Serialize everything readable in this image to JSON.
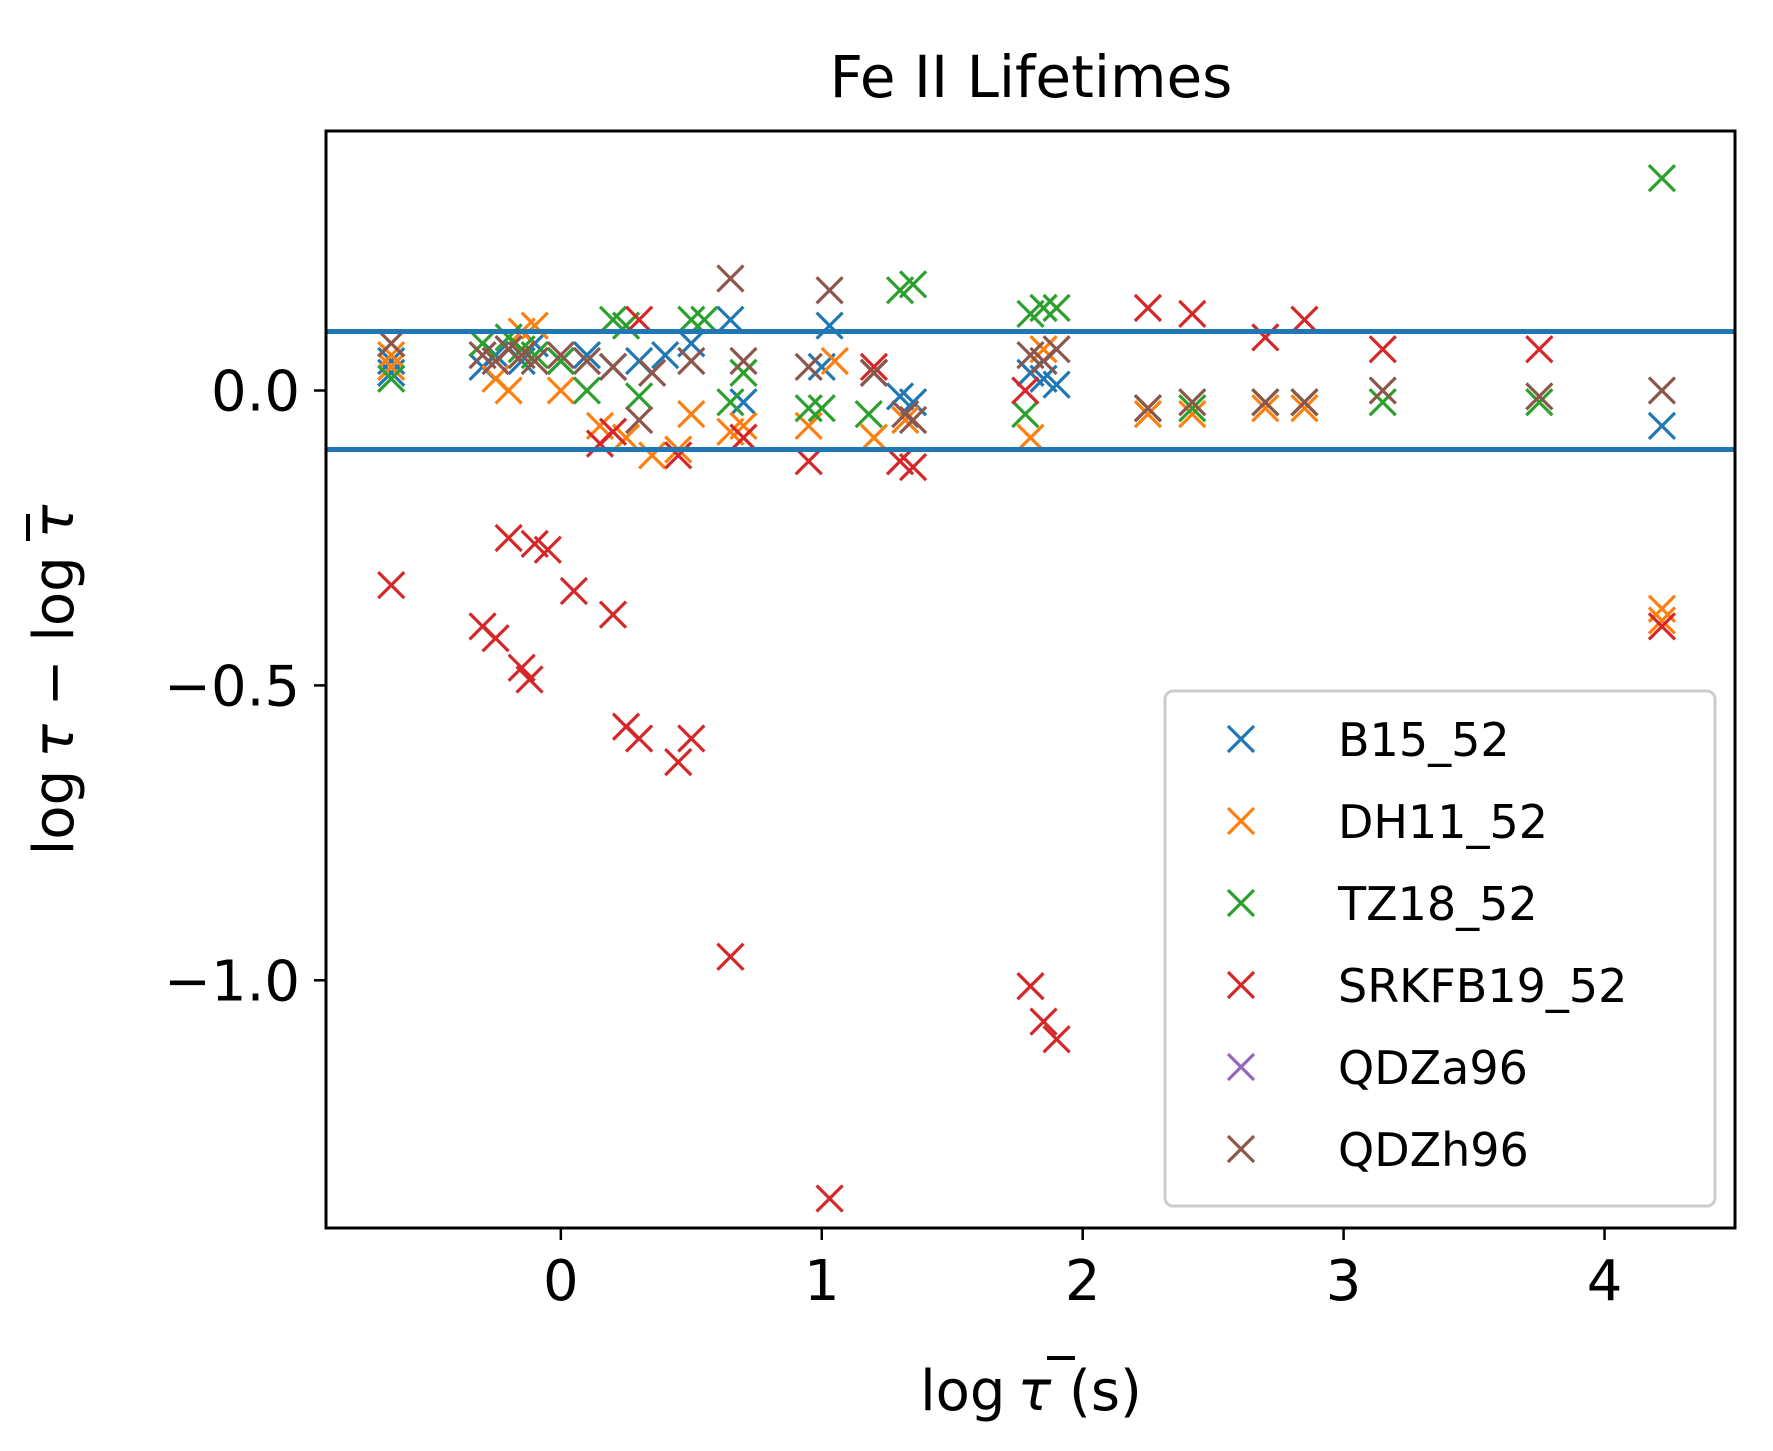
{
  "chart_data": {
    "type": "scatter",
    "title": "Fe II Lifetimes",
    "xlabel_prefix": "log",
    "xlabel_symbol": "τ",
    "xlabel_suffix": " (s)",
    "ylabel_left": "log",
    "ylabel_tau": "τ",
    "ylabel_minus": " − log ",
    "ylabel_taubar": "τ",
    "xlim": [
      -0.9,
      4.5
    ],
    "ylim": [
      -1.42,
      0.44
    ],
    "xticks": [
      0,
      1,
      2,
      3,
      4
    ],
    "xtick_labels": [
      "0",
      "1",
      "2",
      "3",
      "4"
    ],
    "yticks": [
      0.0,
      -0.5,
      -1.0
    ],
    "ytick_labels": [
      "0.0",
      "−0.5",
      "−1.0"
    ],
    "hlines": [
      0.1,
      -0.1
    ],
    "hline_color": "#1f77b4",
    "legend_position": "lower-right",
    "series": [
      {
        "name": "B15_52",
        "color": "#1f77b4",
        "points": [
          [
            -0.65,
            0.05
          ],
          [
            -0.65,
            0.03
          ],
          [
            -0.3,
            0.04
          ],
          [
            -0.25,
            0.06
          ],
          [
            -0.2,
            0.07
          ],
          [
            -0.15,
            0.05
          ],
          [
            -0.1,
            0.08
          ],
          [
            0.0,
            0.05
          ],
          [
            0.1,
            0.06
          ],
          [
            0.2,
            0.04
          ],
          [
            0.3,
            0.05
          ],
          [
            0.4,
            0.06
          ],
          [
            0.5,
            0.08
          ],
          [
            0.65,
            0.12
          ],
          [
            0.7,
            -0.02
          ],
          [
            1.0,
            0.04
          ],
          [
            1.03,
            0.11
          ],
          [
            1.2,
            0.03
          ],
          [
            1.3,
            -0.01
          ],
          [
            1.35,
            -0.02
          ],
          [
            1.8,
            0.03
          ],
          [
            1.85,
            0.02
          ],
          [
            1.9,
            0.01
          ],
          [
            4.22,
            -0.06
          ]
        ]
      },
      {
        "name": "DH11_52",
        "color": "#ff7f0e",
        "points": [
          [
            -0.65,
            0.06
          ],
          [
            -0.65,
            0.04
          ],
          [
            -0.25,
            0.02
          ],
          [
            -0.2,
            0.0
          ],
          [
            -0.15,
            0.1
          ],
          [
            -0.1,
            0.11
          ],
          [
            0.0,
            0.0
          ],
          [
            0.15,
            -0.06
          ],
          [
            0.25,
            -0.08
          ],
          [
            0.35,
            -0.11
          ],
          [
            0.45,
            -0.1
          ],
          [
            0.5,
            -0.04
          ],
          [
            0.65,
            -0.07
          ],
          [
            0.7,
            -0.06
          ],
          [
            0.95,
            -0.06
          ],
          [
            1.05,
            0.05
          ],
          [
            1.2,
            -0.08
          ],
          [
            1.32,
            -0.05
          ],
          [
            1.8,
            -0.08
          ],
          [
            1.85,
            0.07
          ],
          [
            2.25,
            -0.04
          ],
          [
            2.42,
            -0.04
          ],
          [
            2.7,
            -0.03
          ],
          [
            2.85,
            -0.03
          ],
          [
            4.22,
            -0.37
          ],
          [
            4.22,
            -0.39
          ]
        ]
      },
      {
        "name": "TZ18_52",
        "color": "#2ca02c",
        "points": [
          [
            -0.65,
            0.02
          ],
          [
            -0.3,
            0.08
          ],
          [
            -0.2,
            0.09
          ],
          [
            -0.15,
            0.07
          ],
          [
            -0.1,
            0.06
          ],
          [
            0.0,
            0.05
          ],
          [
            0.1,
            0.0
          ],
          [
            0.2,
            0.12
          ],
          [
            0.25,
            0.11
          ],
          [
            0.3,
            -0.01
          ],
          [
            0.5,
            0.12
          ],
          [
            0.55,
            0.12
          ],
          [
            0.65,
            -0.02
          ],
          [
            0.7,
            0.03
          ],
          [
            0.95,
            -0.03
          ],
          [
            1.0,
            -0.03
          ],
          [
            1.18,
            -0.04
          ],
          [
            1.3,
            0.17
          ],
          [
            1.35,
            0.18
          ],
          [
            1.8,
            0.13
          ],
          [
            1.85,
            0.14
          ],
          [
            1.9,
            0.14
          ],
          [
            1.78,
            -0.04
          ],
          [
            2.25,
            -0.03
          ],
          [
            2.42,
            -0.03
          ],
          [
            2.7,
            -0.02
          ],
          [
            2.85,
            -0.02
          ],
          [
            3.15,
            -0.02
          ],
          [
            3.75,
            -0.02
          ],
          [
            4.22,
            0.36
          ]
        ]
      },
      {
        "name": "SRKFB19_52",
        "color": "#d62728",
        "points": [
          [
            -0.65,
            -0.33
          ],
          [
            -0.3,
            -0.4
          ],
          [
            -0.25,
            -0.42
          ],
          [
            -0.2,
            -0.25
          ],
          [
            -0.15,
            -0.47
          ],
          [
            -0.12,
            -0.49
          ],
          [
            -0.1,
            -0.26
          ],
          [
            -0.05,
            -0.27
          ],
          [
            0.05,
            -0.34
          ],
          [
            0.2,
            -0.38
          ],
          [
            0.25,
            -0.57
          ],
          [
            0.3,
            -0.59
          ],
          [
            0.45,
            -0.63
          ],
          [
            0.5,
            -0.59
          ],
          [
            0.15,
            -0.09
          ],
          [
            0.2,
            -0.07
          ],
          [
            0.3,
            0.12
          ],
          [
            0.45,
            -0.11
          ],
          [
            0.65,
            -0.96
          ],
          [
            0.7,
            -0.08
          ],
          [
            0.95,
            -0.12
          ],
          [
            1.03,
            -1.37
          ],
          [
            1.2,
            0.04
          ],
          [
            1.3,
            -0.12
          ],
          [
            1.35,
            -0.13
          ],
          [
            1.78,
            0.0
          ],
          [
            1.8,
            -1.01
          ],
          [
            1.85,
            -1.07
          ],
          [
            1.9,
            -1.1
          ],
          [
            2.25,
            0.14
          ],
          [
            2.42,
            0.13
          ],
          [
            2.7,
            0.09
          ],
          [
            2.85,
            0.12
          ],
          [
            3.15,
            0.07
          ],
          [
            3.75,
            0.07
          ],
          [
            4.22,
            -0.4
          ]
        ]
      },
      {
        "name": "QDZa96",
        "color": "#9467bd",
        "points": []
      },
      {
        "name": "QDZh96",
        "color": "#8c564b",
        "points": [
          [
            -0.65,
            0.08
          ],
          [
            -0.3,
            0.06
          ],
          [
            -0.25,
            0.05
          ],
          [
            -0.2,
            0.07
          ],
          [
            -0.15,
            0.06
          ],
          [
            -0.1,
            0.05
          ],
          [
            0.0,
            0.06
          ],
          [
            0.1,
            0.05
          ],
          [
            0.2,
            0.04
          ],
          [
            0.3,
            -0.05
          ],
          [
            0.35,
            0.03
          ],
          [
            0.5,
            0.05
          ],
          [
            0.65,
            0.19
          ],
          [
            0.7,
            0.05
          ],
          [
            0.95,
            0.04
          ],
          [
            1.03,
            0.17
          ],
          [
            1.2,
            0.03
          ],
          [
            1.32,
            -0.04
          ],
          [
            1.35,
            -0.05
          ],
          [
            1.8,
            0.06
          ],
          [
            1.85,
            0.05
          ],
          [
            1.9,
            0.07
          ],
          [
            2.25,
            -0.03
          ],
          [
            2.42,
            -0.02
          ],
          [
            2.7,
            -0.02
          ],
          [
            2.85,
            -0.02
          ],
          [
            3.15,
            0.0
          ],
          [
            3.75,
            -0.01
          ],
          [
            4.22,
            0.0
          ]
        ]
      }
    ]
  }
}
